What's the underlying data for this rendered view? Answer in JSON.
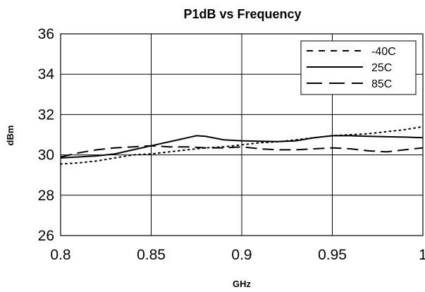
{
  "chart_data": {
    "type": "line",
    "title": "P1dB vs Frequency",
    "xlabel": "GHz",
    "ylabel": "dBm",
    "xlim": [
      0.8,
      1.0
    ],
    "ylim": [
      26,
      36
    ],
    "xticks": [
      0.8,
      0.85,
      0.9,
      0.95,
      1.0
    ],
    "xtick_labels": [
      "0.8",
      "0.85",
      "0.9",
      "0.95",
      "1"
    ],
    "yticks": [
      26,
      28,
      30,
      32,
      34,
      36
    ],
    "ytick_labels": [
      "26",
      "28",
      "30",
      "32",
      "34",
      "36"
    ],
    "grid": true,
    "legend_position": "top-right",
    "series": [
      {
        "name": "-40C",
        "style": "dotted",
        "x": [
          0.8,
          0.81,
          0.82,
          0.83,
          0.84,
          0.85,
          0.86,
          0.87,
          0.88,
          0.89,
          0.9,
          0.91,
          0.92,
          0.93,
          0.94,
          0.95,
          0.96,
          0.97,
          0.98,
          0.99,
          1.0
        ],
        "y": [
          29.55,
          29.6,
          29.7,
          29.85,
          30.0,
          30.05,
          30.15,
          30.25,
          30.35,
          30.4,
          30.5,
          30.6,
          30.65,
          30.75,
          30.85,
          30.95,
          31.0,
          31.05,
          31.15,
          31.25,
          31.4
        ]
      },
      {
        "name": "25C",
        "style": "solid",
        "x": [
          0.8,
          0.81,
          0.82,
          0.83,
          0.84,
          0.85,
          0.86,
          0.87,
          0.875,
          0.88,
          0.89,
          0.9,
          0.91,
          0.92,
          0.93,
          0.94,
          0.95,
          0.96,
          0.97,
          0.98,
          0.99,
          1.0
        ],
        "y": [
          29.85,
          29.9,
          29.95,
          30.05,
          30.25,
          30.45,
          30.65,
          30.85,
          30.95,
          30.92,
          30.75,
          30.7,
          30.68,
          30.66,
          30.7,
          30.85,
          30.95,
          30.95,
          30.92,
          30.9,
          30.88,
          30.85
        ]
      },
      {
        "name": "85C",
        "style": "dashed",
        "x": [
          0.8,
          0.81,
          0.82,
          0.83,
          0.84,
          0.85,
          0.86,
          0.87,
          0.88,
          0.89,
          0.9,
          0.91,
          0.92,
          0.93,
          0.94,
          0.95,
          0.96,
          0.97,
          0.98,
          0.99,
          1.0
        ],
        "y": [
          29.9,
          30.1,
          30.25,
          30.35,
          30.4,
          30.45,
          30.4,
          30.4,
          30.35,
          30.35,
          30.4,
          30.3,
          30.25,
          30.25,
          30.3,
          30.35,
          30.3,
          30.2,
          30.15,
          30.25,
          30.35
        ]
      }
    ]
  }
}
